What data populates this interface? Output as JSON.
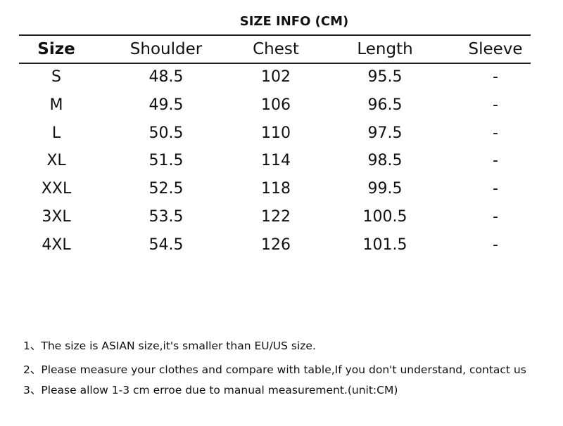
{
  "title": "SIZE INFO (CM)",
  "table": {
    "headers": [
      "Size",
      "Shoulder",
      "Chest",
      "Length",
      "Sleeve"
    ],
    "rows": [
      [
        "S",
        "48.5",
        "102",
        "95.5",
        "-"
      ],
      [
        "M",
        "49.5",
        "106",
        "96.5",
        "-"
      ],
      [
        "L",
        "50.5",
        "110",
        "97.5",
        "-"
      ],
      [
        "XL",
        "51.5",
        "114",
        "98.5",
        "-"
      ],
      [
        "XXL",
        "52.5",
        "118",
        "99.5",
        "-"
      ],
      [
        "3XL",
        "53.5",
        "122",
        "100.5",
        "-"
      ],
      [
        "4XL",
        "54.5",
        "126",
        "101.5",
        "-"
      ]
    ]
  },
  "notes": [
    "1、The size is ASIAN size,it's smaller than EU/US size.",
    "2、Please measure your clothes and compare with table,If you don't understand, contact us",
    "3、Please allow 1-3 cm erroe due to manual measurement.(unit:CM)"
  ]
}
